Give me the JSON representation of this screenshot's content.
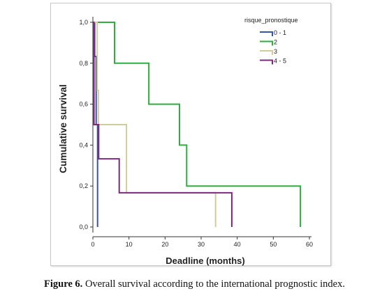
{
  "caption": {
    "label": "Figure 6.",
    "text": " Overall survival according to the international prognostic index."
  },
  "chart_data": {
    "type": "line",
    "step": true,
    "xlabel": "Deadline (months)",
    "ylabel": "Cumulative survival",
    "xlim": [
      0,
      60
    ],
    "ylim": [
      0,
      1
    ],
    "x_ticks": [
      "0",
      "10",
      "20",
      "30",
      "40",
      "50",
      "60"
    ],
    "y_ticks": [
      "0,0",
      "0,2",
      "0,4",
      "0,6",
      "0,8",
      "1,0"
    ],
    "grid": false,
    "legend": {
      "title": "risque_pronostique",
      "placement": "top-right"
    },
    "series": [
      {
        "name": "0 - 1",
        "color": "#3a53a4",
        "points": [
          [
            0,
            1.0
          ],
          [
            0.5,
            1.0
          ],
          [
            0.5,
            0.833
          ],
          [
            0.9,
            0.833
          ],
          [
            0.9,
            0.5
          ],
          [
            1.3,
            0.5
          ],
          [
            1.3,
            0.0
          ]
        ]
      },
      {
        "name": "2",
        "color": "#2fae3f",
        "points": [
          [
            0,
            1.0
          ],
          [
            6,
            1.0
          ],
          [
            6,
            0.8
          ],
          [
            15.5,
            0.8
          ],
          [
            15.5,
            0.6
          ],
          [
            24,
            0.6
          ],
          [
            24,
            0.4
          ],
          [
            26,
            0.4
          ],
          [
            26,
            0.2
          ],
          [
            57.5,
            0.2
          ],
          [
            57.5,
            0.0
          ]
        ]
      },
      {
        "name": "3",
        "color": "#d2cc9a",
        "points": [
          [
            0,
            1.0
          ],
          [
            1.2,
            1.0
          ],
          [
            1.2,
            0.667
          ],
          [
            1.5,
            0.667
          ],
          [
            1.5,
            0.5
          ],
          [
            9.3,
            0.5
          ],
          [
            9.3,
            0.167
          ],
          [
            34,
            0.167
          ],
          [
            34,
            0.0
          ]
        ]
      },
      {
        "name": "4 - 5",
        "color": "#7b2a7d",
        "points": [
          [
            0,
            1.0
          ],
          [
            0.3,
            1.0
          ],
          [
            0.3,
            0.5
          ],
          [
            1.6,
            0.5
          ],
          [
            1.6,
            0.333
          ],
          [
            7.3,
            0.333
          ],
          [
            7.3,
            0.167
          ],
          [
            38.5,
            0.167
          ],
          [
            38.5,
            0.0
          ]
        ]
      }
    ]
  }
}
